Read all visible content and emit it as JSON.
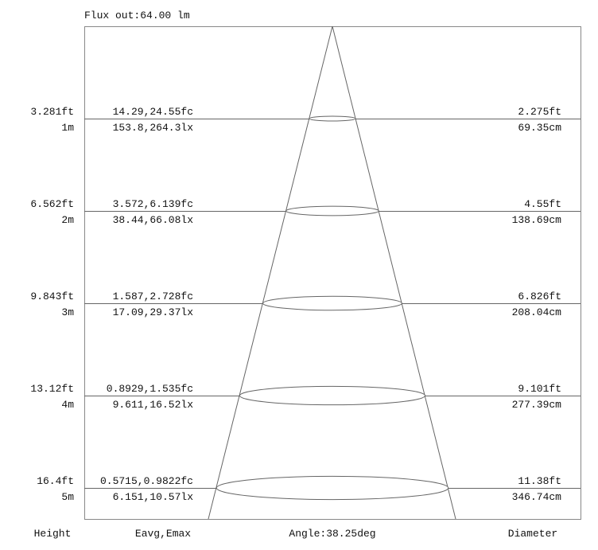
{
  "title": "Flux out:64.00 lm",
  "footer": {
    "height_label": "Height",
    "illuminance_label": "Eavg,Emax",
    "angle_label": "Angle:38.25deg",
    "diameter_label": "Diameter"
  },
  "levels": [
    {
      "height_ft": "3.281ft",
      "height_m": "1m",
      "fc": "14.29,24.55fc",
      "lx": "153.8,264.3lx",
      "diam_ft": "2.275ft",
      "diam_cm": "69.35cm"
    },
    {
      "height_ft": "6.562ft",
      "height_m": "2m",
      "fc": "3.572,6.139fc",
      "lx": "38.44,66.08lx",
      "diam_ft": "4.55ft",
      "diam_cm": "138.69cm"
    },
    {
      "height_ft": "9.843ft",
      "height_m": "3m",
      "fc": "1.587,2.728fc",
      "lx": "17.09,29.37lx",
      "diam_ft": "6.826ft",
      "diam_cm": "208.04cm"
    },
    {
      "height_ft": "13.12ft",
      "height_m": "4m",
      "fc": "0.8929,1.535fc",
      "lx": "9.611,16.52lx",
      "diam_ft": "9.101ft",
      "diam_cm": "277.39cm"
    },
    {
      "height_ft": "16.4ft",
      "height_m": "5m",
      "fc": "0.5715,0.9822fc",
      "lx": "6.151,10.57lx",
      "diam_ft": "11.38ft",
      "diam_cm": "346.74cm"
    }
  ]
}
